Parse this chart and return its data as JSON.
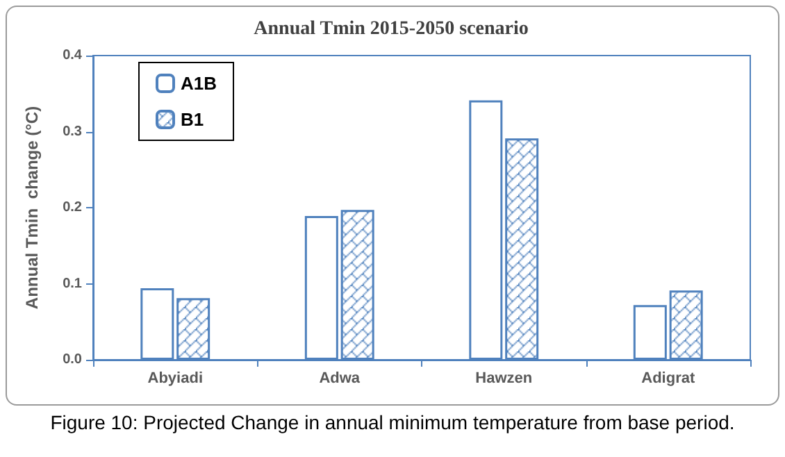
{
  "chart_data": {
    "type": "bar",
    "title": "Annual Tmin 2015-2050 scenario",
    "ylabel": "Annual Tmin  change (°C)",
    "categories": [
      "Abyiadi",
      "Adwa",
      "Hawzen",
      "Adigrat"
    ],
    "series": [
      {
        "name": "A1B",
        "color": "#4f81bd",
        "values": [
          0.094,
          0.189,
          0.341,
          0.072
        ]
      },
      {
        "name": "B1",
        "color": "#4f81bd",
        "values": [
          0.081,
          0.197,
          0.291,
          0.091
        ]
      }
    ],
    "ylim": [
      0,
      0.4
    ],
    "yticks": [
      {
        "value": 0,
        "label": "0.0"
      },
      {
        "value": 0.1,
        "label": "0.1"
      },
      {
        "value": 0.2,
        "label": "0.2"
      },
      {
        "value": 0.3,
        "label": "0.3"
      },
      {
        "value": 0.4,
        "label": "0.4"
      }
    ],
    "grid": false,
    "legend": "top left",
    "annotations": [
      "Figure 10: Projected Change in annual minimum temperature from base period."
    ]
  }
}
